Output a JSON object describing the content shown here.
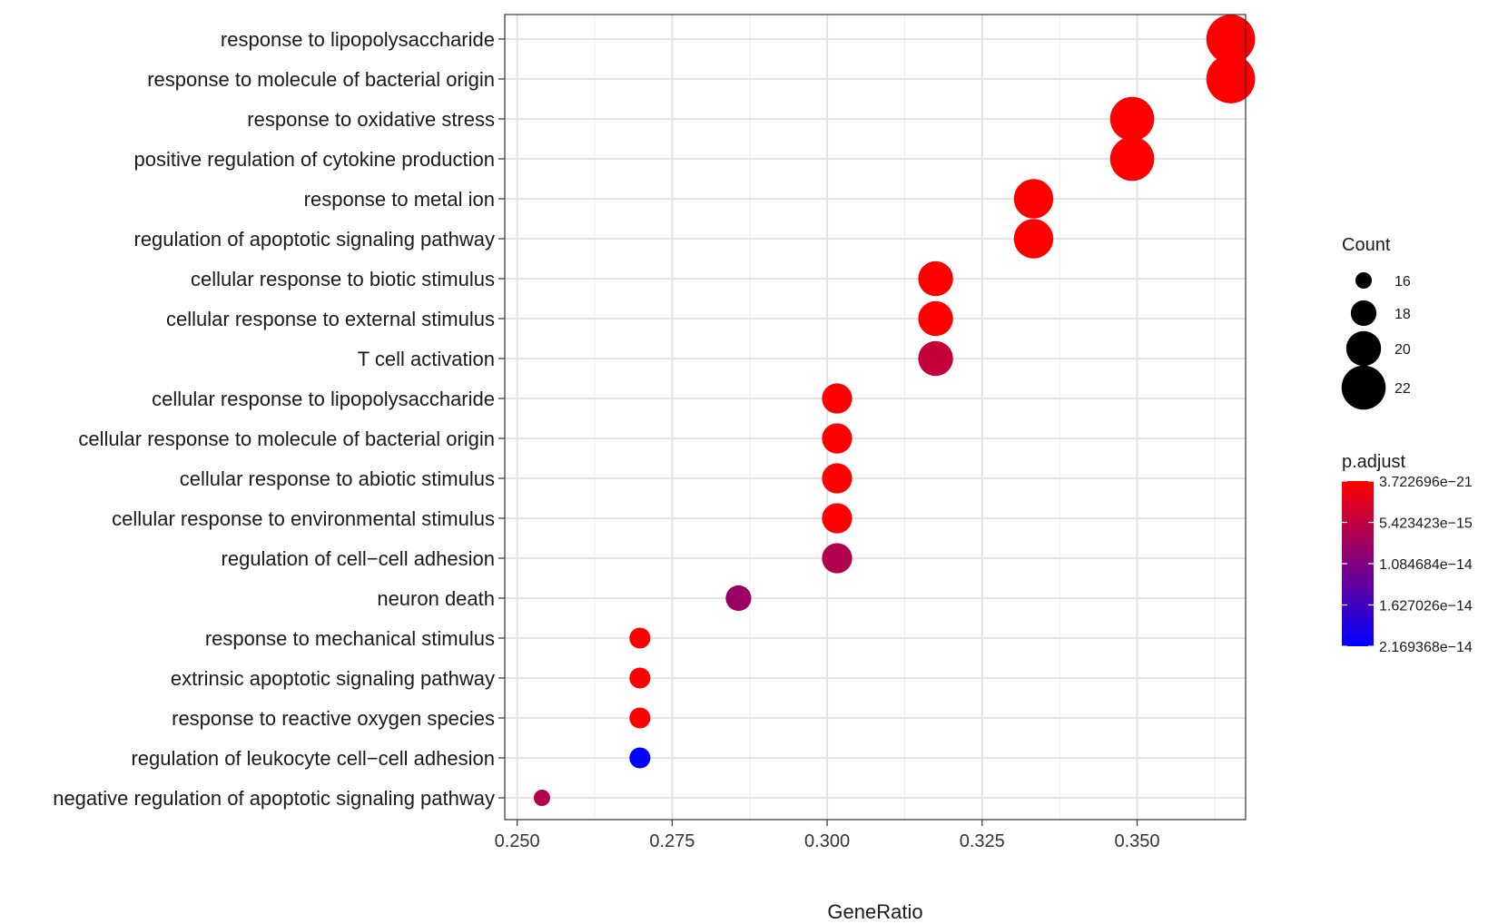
{
  "chart_data": {
    "type": "scatter",
    "xlabel": "GeneRatio",
    "ylabel": "",
    "xlim": [
      0.248,
      0.3675
    ],
    "x_ticks": [
      0.25,
      0.275,
      0.3,
      0.325,
      0.35
    ],
    "x_tick_labels": [
      "0.250",
      "0.275",
      "0.300",
      "0.325",
      "0.350"
    ],
    "grid": true,
    "categories": [
      "response to lipopolysaccharide",
      "response to molecule of bacterial origin",
      "response to oxidative stress",
      "positive regulation of cytokine production",
      "response to metal ion",
      "regulation of apoptotic signaling pathway",
      "cellular response to biotic stimulus",
      "cellular response to external stimulus",
      "T cell activation",
      "cellular response to lipopolysaccharide",
      "cellular response to molecule of bacterial origin",
      "cellular response to abiotic stimulus",
      "cellular response to environmental stimulus",
      "regulation of cell−cell adhesion",
      "neuron death",
      "response to mechanical stimulus",
      "extrinsic apoptotic signaling pathway",
      "response to reactive oxygen species",
      "regulation of leukocyte cell−cell adhesion",
      "negative regulation of apoptotic signaling pathway"
    ],
    "points": [
      {
        "term": "response to lipopolysaccharide",
        "gene_ratio": 0.3651,
        "count": 23,
        "p_adjust": 4e-21
      },
      {
        "term": "response to molecule of bacterial origin",
        "gene_ratio": 0.3651,
        "count": 23,
        "p_adjust": 4e-21
      },
      {
        "term": "response to oxidative stress",
        "gene_ratio": 0.3492,
        "count": 22,
        "p_adjust": 4e-21
      },
      {
        "term": "positive regulation of cytokine production",
        "gene_ratio": 0.3492,
        "count": 22,
        "p_adjust": 4e-21
      },
      {
        "term": "response to metal ion",
        "gene_ratio": 0.3333,
        "count": 21,
        "p_adjust": 1e-20
      },
      {
        "term": "regulation of apoptotic signaling pathway",
        "gene_ratio": 0.3333,
        "count": 21,
        "p_adjust": 1e-20
      },
      {
        "term": "cellular response to biotic stimulus",
        "gene_ratio": 0.3175,
        "count": 20,
        "p_adjust": 1e-19
      },
      {
        "term": "cellular response to external stimulus",
        "gene_ratio": 0.3175,
        "count": 20,
        "p_adjust": 1e-19
      },
      {
        "term": "T cell activation",
        "gene_ratio": 0.3175,
        "count": 20,
        "p_adjust": 5e-15
      },
      {
        "term": "cellular response to lipopolysaccharide",
        "gene_ratio": 0.3016,
        "count": 19,
        "p_adjust": 1e-19
      },
      {
        "term": "cellular response to molecule of bacterial origin",
        "gene_ratio": 0.3016,
        "count": 19,
        "p_adjust": 1e-19
      },
      {
        "term": "cellular response to abiotic stimulus",
        "gene_ratio": 0.3016,
        "count": 19,
        "p_adjust": 1e-19
      },
      {
        "term": "cellular response to environmental stimulus",
        "gene_ratio": 0.3016,
        "count": 19,
        "p_adjust": 1e-19
      },
      {
        "term": "regulation of cell−cell adhesion",
        "gene_ratio": 0.3016,
        "count": 19,
        "p_adjust": 6.5e-15
      },
      {
        "term": "neuron death",
        "gene_ratio": 0.2857,
        "count": 18,
        "p_adjust": 8.5e-15
      },
      {
        "term": "response to mechanical stimulus",
        "gene_ratio": 0.2698,
        "count": 17,
        "p_adjust": 1e-18
      },
      {
        "term": "extrinsic apoptotic signaling pathway",
        "gene_ratio": 0.2698,
        "count": 17,
        "p_adjust": 1e-18
      },
      {
        "term": "response to reactive oxygen species",
        "gene_ratio": 0.2698,
        "count": 17,
        "p_adjust": 1e-18
      },
      {
        "term": "regulation of leukocyte cell−cell adhesion",
        "gene_ratio": 0.2698,
        "count": 17,
        "p_adjust": 2.169368e-14
      },
      {
        "term": "negative regulation of apoptotic signaling pathway",
        "gene_ratio": 0.254,
        "count": 16,
        "p_adjust": 6.5e-15
      }
    ],
    "legend_size": {
      "title": "Count",
      "values": [
        16,
        18,
        20,
        22
      ],
      "labels": [
        "16",
        "18",
        "20",
        "22"
      ]
    },
    "legend_color": {
      "title": "p.adjust",
      "min": 3.722696e-21,
      "max": 2.169368e-14,
      "low_color": "#ff0000",
      "high_color": "#0000ff",
      "breaks": [
        3.722696e-21,
        5.423423e-15,
        1.084684e-14,
        1.627026e-14,
        2.169368e-14
      ],
      "labels": [
        "3.722696e−21",
        "5.423423e−15",
        "1.084684e−14",
        "1.627026e−14",
        "2.169368e−14"
      ]
    },
    "legend_position": "right"
  }
}
